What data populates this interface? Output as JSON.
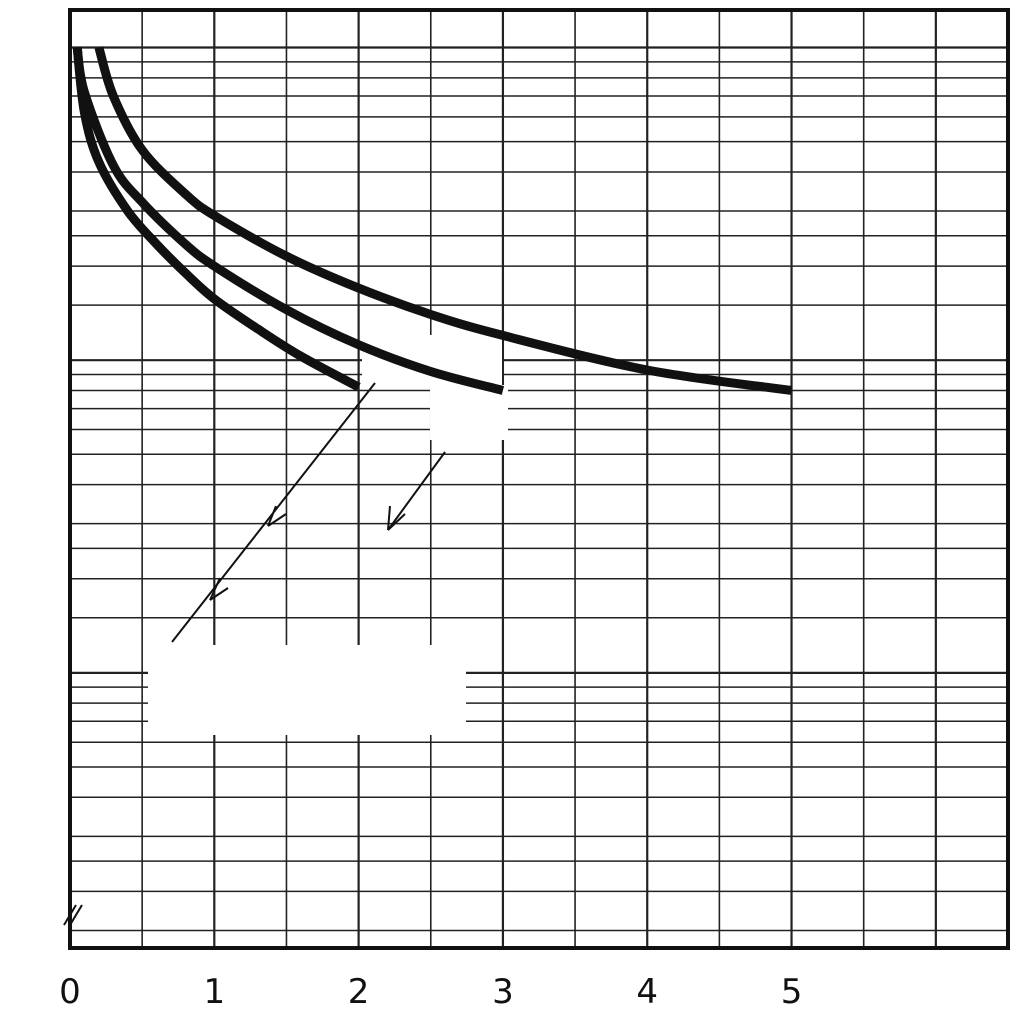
{
  "chart_data": {
    "type": "line",
    "title": "",
    "xlabel": "",
    "ylabel": "",
    "x_ticks": [
      "0",
      "1",
      "2",
      "3",
      "4",
      "5"
    ],
    "xlim": [
      0,
      6.5
    ],
    "y_scale": "log",
    "y_ticks": [],
    "grid": true,
    "legend": "none",
    "series": [
      {
        "points": [
          [
            0.05,
            1.0
          ],
          [
            0.1,
            0.62
          ],
          [
            0.2,
            0.43
          ],
          [
            0.4,
            0.3
          ],
          [
            0.6,
            0.235
          ],
          [
            0.8,
            0.19
          ],
          [
            1.0,
            0.157
          ],
          [
            1.3,
            0.126
          ],
          [
            1.6,
            0.103
          ],
          [
            2.0,
            0.082
          ]
        ]
      },
      {
        "points": [
          [
            0.05,
            1.0
          ],
          [
            0.1,
            0.72
          ],
          [
            0.3,
            0.42
          ],
          [
            0.5,
            0.32
          ],
          [
            0.8,
            0.235
          ],
          [
            1.0,
            0.2
          ],
          [
            1.5,
            0.145
          ],
          [
            2.0,
            0.112
          ],
          [
            2.5,
            0.092
          ],
          [
            3.0,
            0.08
          ]
        ]
      },
      {
        "points": [
          [
            0.2,
            1.0
          ],
          [
            0.3,
            0.7
          ],
          [
            0.5,
            0.47
          ],
          [
            0.8,
            0.34
          ],
          [
            1.0,
            0.29
          ],
          [
            1.5,
            0.215
          ],
          [
            2.0,
            0.17
          ],
          [
            2.5,
            0.14
          ],
          [
            3.0,
            0.12
          ],
          [
            4.0,
            0.093
          ],
          [
            5.0,
            0.08
          ]
        ]
      }
    ],
    "colors": {
      "curve": "#111111",
      "grid": "#222222",
      "frame": "#111111",
      "background": "#ffffff"
    }
  }
}
